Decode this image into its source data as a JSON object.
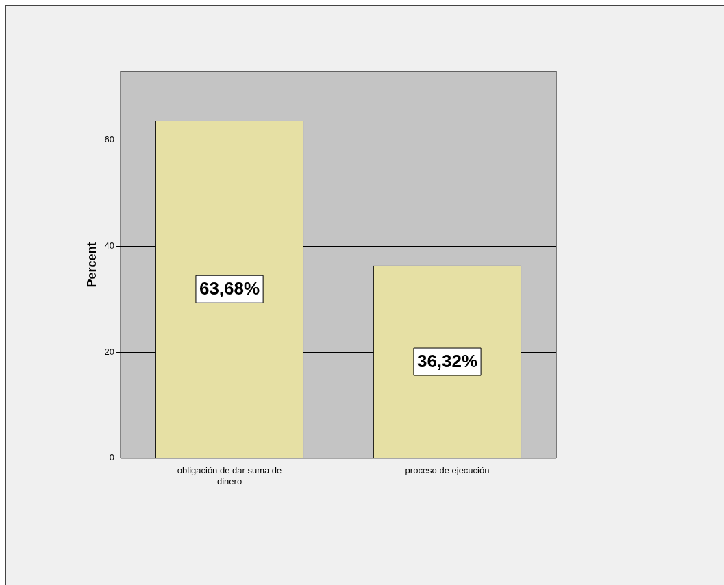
{
  "chart_data": {
    "type": "bar",
    "ylabel": "Percent",
    "categories": [
      "obligación de dar suma de dinero",
      "proceso de ejecución"
    ],
    "values": [
      63.68,
      36.32
    ],
    "color": "#e6e0a4",
    "value_labels": [
      "63,68%",
      "36,32%"
    ],
    "ylim": [
      0,
      73
    ],
    "yticks": [
      0,
      20,
      40,
      60
    ],
    "grid": "y",
    "legend": false
  }
}
